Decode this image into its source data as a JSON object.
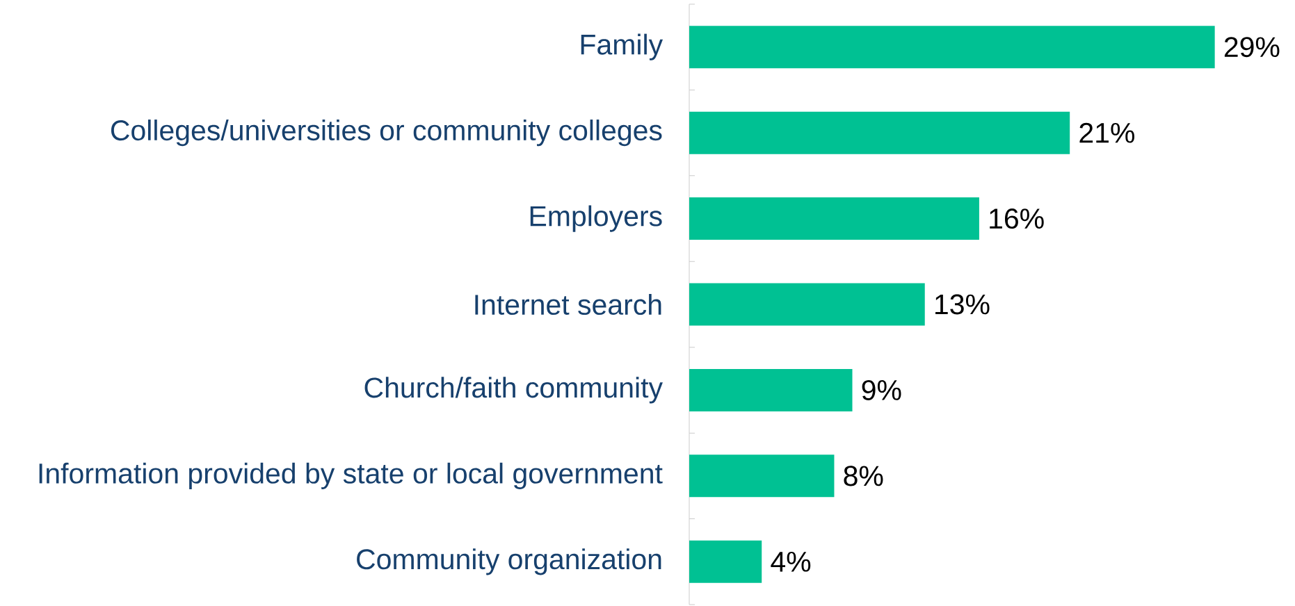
{
  "chart_data": {
    "type": "bar",
    "orientation": "horizontal",
    "categories": [
      "Family",
      "Colleges/universities or community colleges",
      "Employers",
      "Internet search",
      "Church/faith community",
      "Information provided by state or local government",
      "Community organization"
    ],
    "values": [
      29,
      21,
      16,
      13,
      9,
      8,
      4
    ],
    "value_labels": [
      "29%",
      "21%",
      "16%",
      "13%",
      "9%",
      "8%",
      "4%"
    ],
    "color": "#00c193"
  }
}
